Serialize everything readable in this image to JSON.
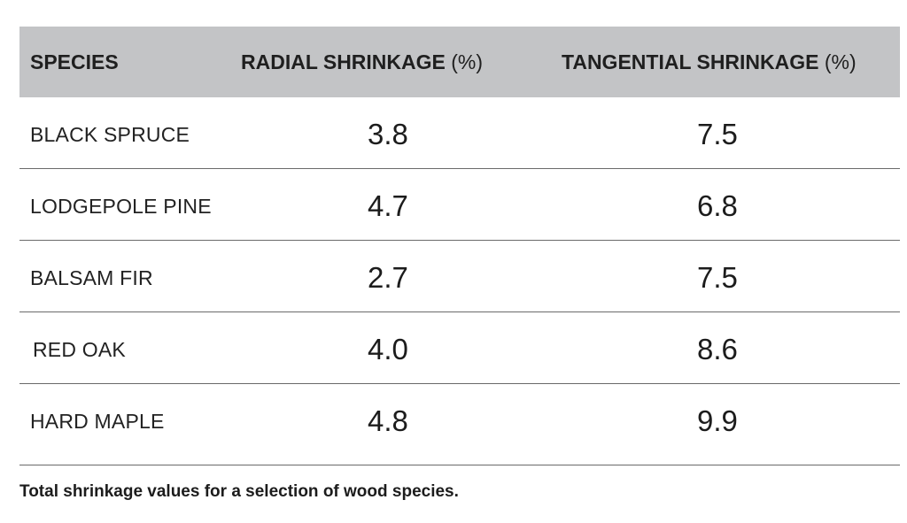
{
  "table": {
    "headers": {
      "species": "SPECIES",
      "radial": "RADIAL SHRINKAGE",
      "radial_unit": "(%)",
      "tangential": "TANGENTIAL SHRINKAGE",
      "tangential_unit": "(%)"
    },
    "rows": [
      {
        "species": "BLACK SPRUCE",
        "radial": "3.8",
        "tangential": "7.5"
      },
      {
        "species": "LODGEPOLE PINE",
        "radial": "4.7",
        "tangential": "6.8"
      },
      {
        "species": "BALSAM FIR",
        "radial": "2.7",
        "tangential": "7.5"
      },
      {
        "species": "RED OAK",
        "radial": "4.0",
        "tangential": "8.6"
      },
      {
        "species": "HARD MAPLE",
        "radial": "4.8",
        "tangential": "9.9"
      }
    ]
  },
  "caption": "Total shrinkage values for a selection of wood species.",
  "colors": {
    "header_background": "#c3c4c6",
    "row_divider": "#6a6a6a",
    "text": "#1c1c1c"
  }
}
